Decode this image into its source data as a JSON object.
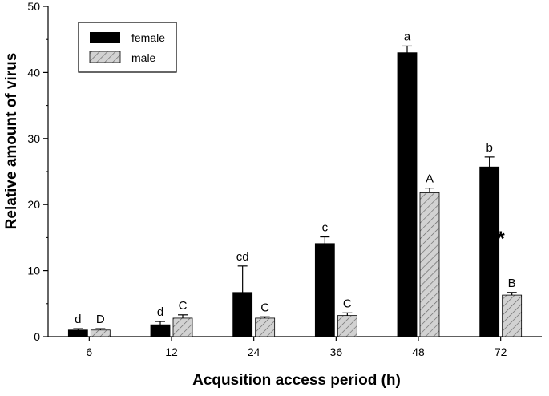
{
  "chart_data": {
    "type": "bar",
    "xlabel": "Acqusition access period (h)",
    "ylabel": "Relative amount of virus",
    "ylim": [
      0,
      50
    ],
    "yticks": [
      "0",
      "10",
      "20",
      "30",
      "40",
      "50"
    ],
    "categories": [
      "6",
      "12",
      "24",
      "36",
      "48",
      "72"
    ],
    "series": [
      {
        "name": "female",
        "color": "#000000",
        "pattern": "solid",
        "values": [
          1.0,
          1.8,
          6.7,
          14.1,
          43.0,
          25.7
        ],
        "errors": [
          0.2,
          0.5,
          4.0,
          1.0,
          1.0,
          1.5
        ],
        "letters": [
          "d",
          "d",
          "cd",
          "c",
          "a",
          "b"
        ]
      },
      {
        "name": "male",
        "color": "#c8c8c8",
        "pattern": "hatched",
        "values": [
          1.0,
          2.8,
          2.8,
          3.2,
          21.8,
          6.3
        ],
        "errors": [
          0.2,
          0.5,
          0.2,
          0.4,
          0.7,
          0.4
        ],
        "letters": [
          "D",
          "C",
          "C",
          "C",
          "A",
          "B"
        ]
      }
    ],
    "annotations": [
      {
        "text": "*",
        "category": "72",
        "y": 15.5
      }
    ],
    "legend_position": "top-left"
  }
}
